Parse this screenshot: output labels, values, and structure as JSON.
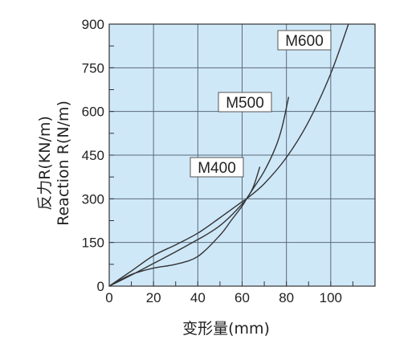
{
  "chart_data": {
    "type": "line",
    "xlabel": "变形量(mm)",
    "ylabel": [
      "反力R(KN/m)",
      "Reaction R(N/m)"
    ],
    "xlim": [
      0,
      120
    ],
    "ylim": [
      0,
      900
    ],
    "xticks": [
      0,
      20,
      40,
      60,
      80,
      100
    ],
    "yticks": [
      0,
      150,
      300,
      450,
      600,
      750,
      900
    ],
    "grid": true,
    "background": "#cfe8f8",
    "grid_color": "#5a6a7a",
    "line_color": "#333333",
    "series": [
      {
        "name": "M400",
        "x": [
          0,
          10,
          20,
          30,
          40,
          45,
          50,
          55,
          60,
          62,
          65,
          68
        ],
        "y": [
          0,
          38,
          78,
          118,
          160,
          182,
          208,
          242,
          282,
          300,
          340,
          410
        ]
      },
      {
        "name": "M500",
        "x": [
          0,
          10,
          20,
          30,
          40,
          50,
          55,
          60,
          62,
          65,
          70,
          75,
          78,
          81
        ],
        "y": [
          0,
          40,
          62,
          75,
          102,
          175,
          225,
          275,
          300,
          335,
          395,
          475,
          545,
          650
        ]
      },
      {
        "name": "M600",
        "x": [
          0,
          10,
          20,
          30,
          40,
          50,
          60,
          62,
          70,
          80,
          90,
          100,
          108
        ],
        "y": [
          0,
          52,
          105,
          142,
          182,
          235,
          290,
          300,
          352,
          442,
          565,
          730,
          900
        ]
      }
    ]
  }
}
